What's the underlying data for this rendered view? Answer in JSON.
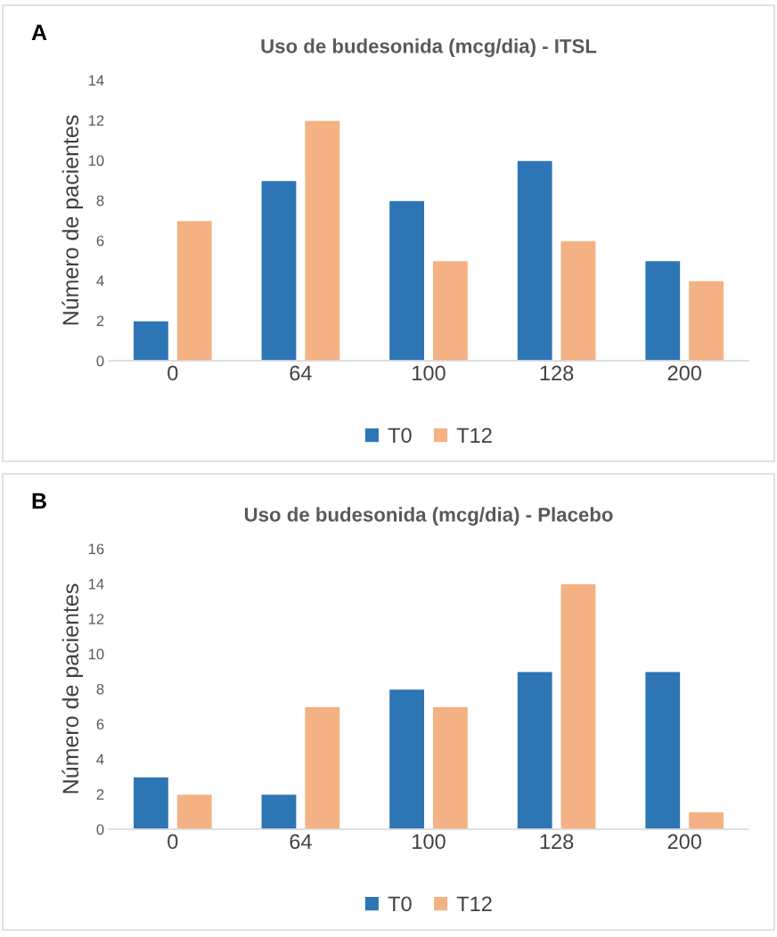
{
  "chart_data": [
    {
      "type": "bar",
      "title": "Uso de budesonida (mcg/dia) - ITSL",
      "ylabel": "Número de pacientes",
      "annotations": [
        "A"
      ],
      "categories": [
        "0",
        "64",
        "100",
        "128",
        "200"
      ],
      "series": [
        {
          "name": "T0",
          "color": "#2e75b6",
          "values": [
            2,
            9,
            8,
            10,
            5
          ]
        },
        {
          "name": "T12",
          "color": "#f4b183",
          "values": [
            7,
            12,
            5,
            6,
            4
          ]
        }
      ],
      "ylim": [
        0,
        14
      ],
      "yticks": [
        0,
        2,
        4,
        6,
        8,
        10,
        12,
        14
      ],
      "legend": "bottom"
    },
    {
      "type": "bar",
      "title": "Uso de budesonida (mcg/dia) - Placebo",
      "ylabel": "Número de pacientes",
      "annotations": [
        "B"
      ],
      "categories": [
        "0",
        "64",
        "100",
        "128",
        "200"
      ],
      "series": [
        {
          "name": "T0",
          "color": "#2e75b6",
          "values": [
            3,
            2,
            8,
            9,
            9
          ]
        },
        {
          "name": "T12",
          "color": "#f4b183",
          "values": [
            2,
            7,
            7,
            14,
            1
          ]
        }
      ],
      "ylim": [
        0,
        16
      ],
      "yticks": [
        0,
        2,
        4,
        6,
        8,
        10,
        12,
        14,
        16
      ],
      "legend": "bottom"
    }
  ]
}
